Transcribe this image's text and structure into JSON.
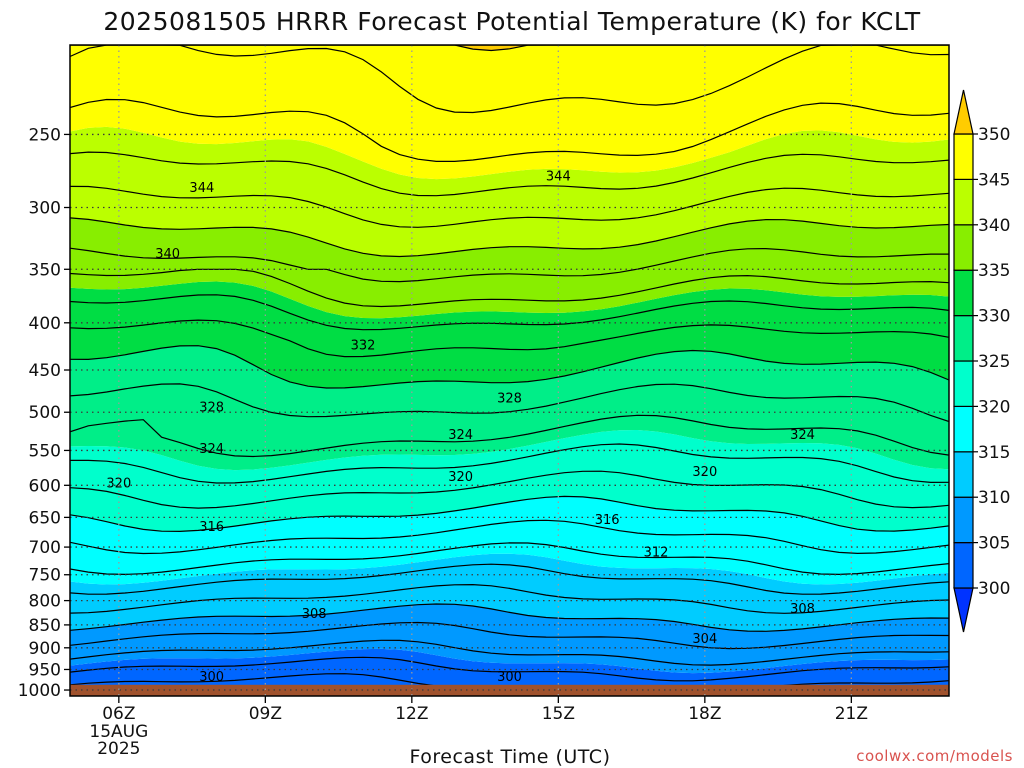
{
  "chart_data": {
    "type": "heatmap",
    "title": "2025081505 HRRR Forecast Potential Temperature (K) for KCLT",
    "xlabel": "Forecast Time (UTC)",
    "ylabel": "",
    "credit": "coolwx.com/models",
    "x_ticks": [
      "06Z",
      "09Z",
      "12Z",
      "15Z",
      "18Z",
      "21Z"
    ],
    "x_tick_sub": [
      "15AUG",
      "2025"
    ],
    "x_hours": [
      6,
      9,
      12,
      15,
      18,
      21
    ],
    "x_range_hours": [
      5,
      23
    ],
    "y_ticks": [
      250,
      300,
      350,
      400,
      450,
      500,
      550,
      600,
      650,
      700,
      750,
      800,
      850,
      900,
      950,
      1000
    ],
    "y_scale": "log-pressure (inverted)",
    "y_range_hPa": [
      200,
      1015
    ],
    "surface_pressure_hPa": 987,
    "grid": "dotted at x and y ticks",
    "colorbar": {
      "levels": [
        300,
        305,
        310,
        315,
        320,
        325,
        330,
        335,
        340,
        345,
        350
      ],
      "labels": [
        "300",
        "305",
        "310",
        "315",
        "320",
        "325",
        "330",
        "335",
        "340",
        "345",
        "350"
      ],
      "colors": [
        "#0033ff",
        "#0066ff",
        "#0099ff",
        "#00ccff",
        "#00ffff",
        "#00ffcc",
        "#00ee88",
        "#00dd44",
        "#88ee00",
        "#bbff00",
        "#ffff00",
        "#ffcc00"
      ]
    },
    "contour_labels": [
      {
        "text": "344",
        "hour": 7.7,
        "p": 285
      },
      {
        "text": "344",
        "hour": 15.0,
        "p": 277
      },
      {
        "text": "340",
        "hour": 7.0,
        "p": 336
      },
      {
        "text": "332",
        "hour": 11.0,
        "p": 422
      },
      {
        "text": "328",
        "hour": 7.9,
        "p": 493
      },
      {
        "text": "328",
        "hour": 14.0,
        "p": 482
      },
      {
        "text": "324",
        "hour": 7.9,
        "p": 547
      },
      {
        "text": "324",
        "hour": 13.0,
        "p": 528
      },
      {
        "text": "324",
        "hour": 20.0,
        "p": 528
      },
      {
        "text": "320",
        "hour": 6.0,
        "p": 596
      },
      {
        "text": "320",
        "hour": 13.0,
        "p": 586
      },
      {
        "text": "320",
        "hour": 18.0,
        "p": 579
      },
      {
        "text": "316",
        "hour": 7.9,
        "p": 664
      },
      {
        "text": "316",
        "hour": 16.0,
        "p": 653
      },
      {
        "text": "312",
        "hour": 17.0,
        "p": 708
      },
      {
        "text": "308",
        "hour": 10.0,
        "p": 825
      },
      {
        "text": "308",
        "hour": 20.0,
        "p": 815
      },
      {
        "text": "304",
        "hour": 18.0,
        "p": 878
      },
      {
        "text": "300",
        "hour": 7.9,
        "p": 966
      },
      {
        "text": "300",
        "hour": 14.0,
        "p": 966
      }
    ]
  }
}
